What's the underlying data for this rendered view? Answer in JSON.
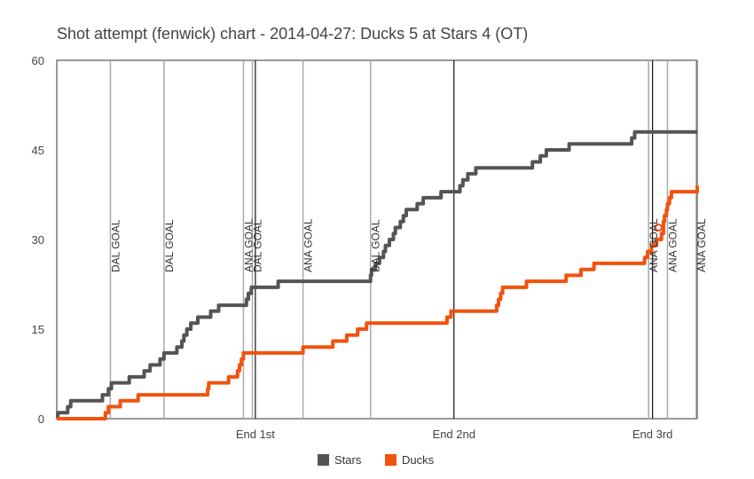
{
  "chart_data": {
    "type": "line",
    "title": "Shot attempt (fenwick) chart - 2014-04-27: Ducks 5 at Stars 4 (OT)",
    "xlabel": "",
    "ylabel": "",
    "xlim": [
      0,
      64.5
    ],
    "ylim": [
      0,
      60
    ],
    "y_ticks": [
      0,
      15,
      30,
      45,
      60
    ],
    "x_ticks": [
      {
        "value": 20,
        "label": "End 1st"
      },
      {
        "value": 40,
        "label": "End 2nd"
      },
      {
        "value": 60,
        "label": "End 3rd"
      }
    ],
    "period_lines": [
      20,
      40,
      60
    ],
    "grid": false,
    "legend_position": "bottom",
    "annotations": [
      {
        "x": 5.4,
        "label": "DAL GOAL"
      },
      {
        "x": 10.8,
        "label": "DAL GOAL"
      },
      {
        "x": 18.8,
        "label": "ANA GOAL"
      },
      {
        "x": 19.7,
        "label": "DAL GOAL"
      },
      {
        "x": 24.8,
        "label": "ANA GOAL"
      },
      {
        "x": 31.6,
        "label": "DAL GOAL"
      },
      {
        "x": 59.6,
        "label": "ANA GOAL"
      },
      {
        "x": 61.5,
        "label": "ANA GOAL"
      },
      {
        "x": 64.4,
        "label": "ANA GOAL"
      }
    ],
    "series": [
      {
        "name": "Stars",
        "color": "#555355",
        "points": [
          [
            0,
            0
          ],
          [
            0.1,
            1
          ],
          [
            1.1,
            2
          ],
          [
            1.4,
            3
          ],
          [
            4.6,
            4
          ],
          [
            5.2,
            5
          ],
          [
            5.5,
            6
          ],
          [
            7.3,
            7
          ],
          [
            8.8,
            8
          ],
          [
            9.4,
            9
          ],
          [
            10.4,
            10
          ],
          [
            10.8,
            11
          ],
          [
            12.1,
            12
          ],
          [
            12.6,
            13
          ],
          [
            12.8,
            14
          ],
          [
            13.1,
            15
          ],
          [
            13.5,
            16
          ],
          [
            14.2,
            17
          ],
          [
            15.5,
            18
          ],
          [
            16.3,
            19
          ],
          [
            19.1,
            20
          ],
          [
            19.3,
            21
          ],
          [
            19.6,
            22
          ],
          [
            22.3,
            23
          ],
          [
            31.6,
            24
          ],
          [
            31.7,
            25
          ],
          [
            32.1,
            26
          ],
          [
            32.5,
            27
          ],
          [
            32.9,
            28
          ],
          [
            33.1,
            29
          ],
          [
            33.5,
            30
          ],
          [
            33.9,
            31
          ],
          [
            34.1,
            32
          ],
          [
            34.6,
            33
          ],
          [
            34.9,
            34
          ],
          [
            35.2,
            35
          ],
          [
            36.3,
            36
          ],
          [
            36.9,
            37
          ],
          [
            38.7,
            38
          ],
          [
            40.6,
            39
          ],
          [
            40.9,
            40
          ],
          [
            41.4,
            41
          ],
          [
            42.2,
            42
          ],
          [
            47.9,
            43
          ],
          [
            48.7,
            44
          ],
          [
            49.3,
            45
          ],
          [
            51.6,
            46
          ],
          [
            57.9,
            47
          ],
          [
            58.2,
            48
          ],
          [
            64.5,
            48
          ]
        ]
      },
      {
        "name": "Ducks",
        "color": "#F2520D",
        "points": [
          [
            0,
            0
          ],
          [
            4.9,
            1
          ],
          [
            5.2,
            2
          ],
          [
            6.4,
            3
          ],
          [
            8.2,
            4
          ],
          [
            15.2,
            5
          ],
          [
            15.3,
            6
          ],
          [
            17.3,
            7
          ],
          [
            18.2,
            8
          ],
          [
            18.4,
            9
          ],
          [
            18.6,
            10
          ],
          [
            18.8,
            11
          ],
          [
            24.8,
            12
          ],
          [
            27.8,
            13
          ],
          [
            29.2,
            14
          ],
          [
            30.3,
            15
          ],
          [
            31.2,
            16
          ],
          [
            39.3,
            17
          ],
          [
            39.7,
            18
          ],
          [
            44.3,
            19
          ],
          [
            44.5,
            20
          ],
          [
            44.7,
            21
          ],
          [
            44.9,
            22
          ],
          [
            47.3,
            23
          ],
          [
            51.3,
            24
          ],
          [
            52.8,
            25
          ],
          [
            54.1,
            26
          ],
          [
            59.2,
            27
          ],
          [
            59.5,
            28
          ],
          [
            59.9,
            29
          ],
          [
            60.4,
            30
          ],
          [
            60.9,
            31
          ],
          [
            61.1,
            33
          ],
          [
            61.2,
            34
          ],
          [
            61.4,
            35
          ],
          [
            61.5,
            36
          ],
          [
            61.7,
            37
          ],
          [
            61.9,
            38
          ],
          [
            64.3,
            38
          ],
          [
            64.5,
            39
          ]
        ],
        "marker": {
          "x": 60.6,
          "y": 32
        }
      }
    ]
  }
}
